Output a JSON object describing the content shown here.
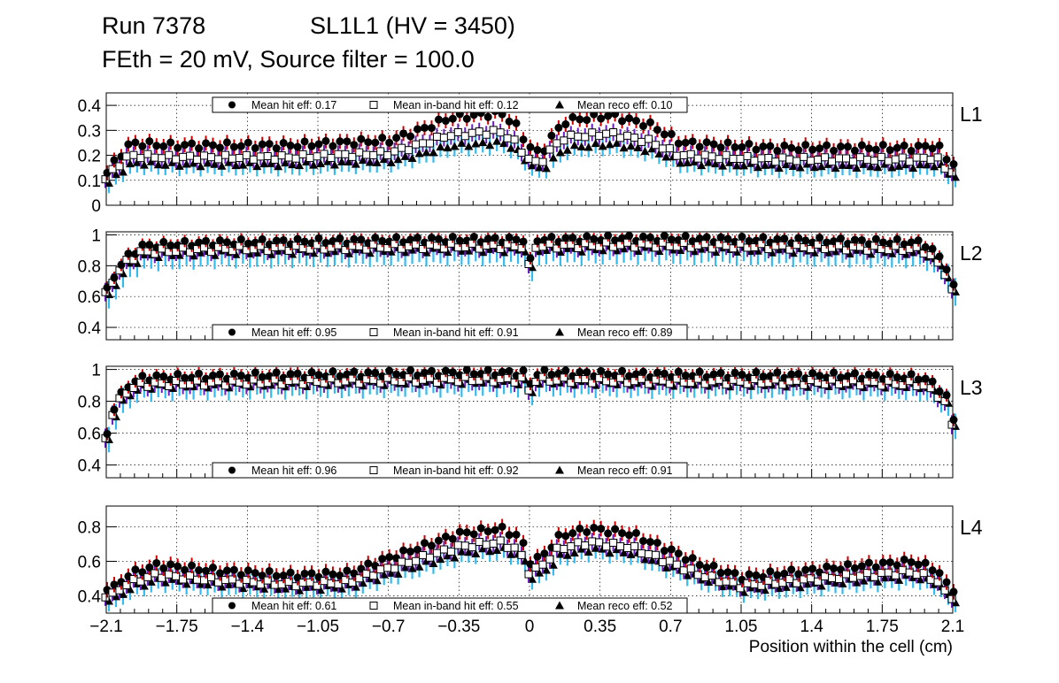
{
  "header": {
    "run": "Run 7378",
    "chamber": "SL1L1 (HV = 3450)",
    "settings": "FEth = 20 mV, Source filter = 100.0"
  },
  "colors": {
    "hit": "#000000",
    "hit_error": "#cc0000",
    "inband_error": "#6a1fc0",
    "reco_error": "#33bbee",
    "grid": "#000000"
  },
  "chart_data": {
    "type": "scatter",
    "xlabel": "Position within the cell (cm)",
    "xlim": [
      -2.1,
      2.1
    ],
    "xticks": [
      "−2.1",
      "−1.75",
      "−1.4",
      "−1.05",
      "−0.7",
      "−0.35",
      "0",
      "0.35",
      "0.7",
      "1.05",
      "1.4",
      "1.75",
      "2.1"
    ],
    "xtick_values": [
      -2.1,
      -1.75,
      -1.4,
      -1.05,
      -0.7,
      -0.35,
      0,
      0.35,
      0.7,
      1.05,
      1.4,
      1.75,
      2.1
    ],
    "legend_labels": {
      "hit": "Mean hit  eff: ",
      "inband": "Mean in-band hit eff: ",
      "reco": "Mean reco eff: "
    },
    "panels": [
      {
        "name": "L1",
        "ylim": [
          0,
          0.45
        ],
        "yticks": [
          "0",
          "0.1",
          "0.2",
          "0.3",
          "0.4"
        ],
        "ytick_values": [
          0,
          0.1,
          0.2,
          0.3,
          0.4
        ],
        "legend_position": "top",
        "mean_hit": "0.17",
        "mean_inband": "0.12",
        "mean_reco": "0.10",
        "hit_profile": [
          [
            -2.1,
            0.13
          ],
          [
            -2.05,
            0.19
          ],
          [
            -1.98,
            0.25
          ],
          [
            -1.8,
            0.24
          ],
          [
            -1.2,
            0.24
          ],
          [
            -0.7,
            0.26
          ],
          [
            -0.55,
            0.3
          ],
          [
            -0.4,
            0.35
          ],
          [
            -0.15,
            0.37
          ],
          [
            -0.08,
            0.33
          ],
          [
            -0.02,
            0.25
          ],
          [
            0.05,
            0.2
          ],
          [
            0.1,
            0.27
          ],
          [
            0.18,
            0.34
          ],
          [
            0.4,
            0.36
          ],
          [
            0.6,
            0.32
          ],
          [
            0.75,
            0.25
          ],
          [
            1.2,
            0.23
          ],
          [
            1.9,
            0.23
          ],
          [
            2.02,
            0.24
          ],
          [
            2.08,
            0.17
          ]
        ],
        "inband_ratio": 0.8,
        "reco_ratio": 0.68,
        "hit_err": 0.03,
        "inband_err": 0.035,
        "reco_err": 0.04
      },
      {
        "name": "L2",
        "ylim": [
          0.32,
          1.02
        ],
        "yticks": [
          "0.4",
          "0.6",
          "0.8",
          "1"
        ],
        "ytick_values": [
          0.4,
          0.6,
          0.8,
          1.0
        ],
        "legend_position": "bottom",
        "mean_hit": "0.95",
        "mean_inband": "0.91",
        "mean_reco": "0.89",
        "hit_profile": [
          [
            -2.1,
            0.64
          ],
          [
            -2.06,
            0.75
          ],
          [
            -2.0,
            0.86
          ],
          [
            -1.92,
            0.93
          ],
          [
            -1.6,
            0.95
          ],
          [
            -0.5,
            0.97
          ],
          [
            -0.03,
            0.97
          ],
          [
            0.0,
            0.83
          ],
          [
            0.03,
            0.97
          ],
          [
            0.5,
            0.98
          ],
          [
            1.6,
            0.96
          ],
          [
            1.95,
            0.95
          ],
          [
            2.02,
            0.87
          ],
          [
            2.06,
            0.81
          ],
          [
            2.1,
            0.66
          ]
        ],
        "inband_ratio": 0.955,
        "reco_ratio": 0.93,
        "hit_err": 0.04,
        "inband_err": 0.06,
        "reco_err": 0.09
      },
      {
        "name": "L3",
        "ylim": [
          0.32,
          1.02
        ],
        "yticks": [
          "0.4",
          "0.6",
          "0.8",
          "1"
        ],
        "ytick_values": [
          0.4,
          0.6,
          0.8,
          1.0
        ],
        "legend_position": "bottom",
        "mean_hit": "0.96",
        "mean_inband": "0.92",
        "mean_reco": "0.91",
        "hit_profile": [
          [
            -2.1,
            0.6
          ],
          [
            -2.06,
            0.78
          ],
          [
            -2.0,
            0.9
          ],
          [
            -1.92,
            0.95
          ],
          [
            -1.5,
            0.96
          ],
          [
            -0.4,
            0.98
          ],
          [
            -0.03,
            0.98
          ],
          [
            0.0,
            0.91
          ],
          [
            0.03,
            0.98
          ],
          [
            0.6,
            0.97
          ],
          [
            1.7,
            0.96
          ],
          [
            1.95,
            0.95
          ],
          [
            2.03,
            0.88
          ],
          [
            2.07,
            0.82
          ],
          [
            2.1,
            0.68
          ]
        ],
        "inband_ratio": 0.955,
        "reco_ratio": 0.94,
        "hit_err": 0.04,
        "inband_err": 0.06,
        "reco_err": 0.08
      },
      {
        "name": "L4",
        "ylim": [
          0.3,
          0.92
        ],
        "yticks": [
          "0.4",
          "0.6",
          "0.8"
        ],
        "ytick_values": [
          0.4,
          0.6,
          0.8
        ],
        "legend_position": "bottom",
        "mean_hit": "0.61",
        "mean_inband": "0.55",
        "mean_reco": "0.52",
        "hit_profile": [
          [
            -2.06,
            0.45
          ],
          [
            -2.0,
            0.52
          ],
          [
            -1.85,
            0.58
          ],
          [
            -1.6,
            0.55
          ],
          [
            -1.2,
            0.52
          ],
          [
            -0.9,
            0.53
          ],
          [
            -0.75,
            0.6
          ],
          [
            -0.55,
            0.68
          ],
          [
            -0.35,
            0.76
          ],
          [
            -0.15,
            0.79
          ],
          [
            -0.05,
            0.74
          ],
          [
            0.0,
            0.6
          ],
          [
            0.05,
            0.62
          ],
          [
            0.15,
            0.75
          ],
          [
            0.3,
            0.79
          ],
          [
            0.5,
            0.76
          ],
          [
            0.7,
            0.66
          ],
          [
            0.85,
            0.58
          ],
          [
            1.05,
            0.51
          ],
          [
            1.5,
            0.56
          ],
          [
            1.9,
            0.6
          ],
          [
            2.02,
            0.55
          ],
          [
            2.08,
            0.44
          ]
        ],
        "inband_ratio": 0.9,
        "reco_ratio": 0.85,
        "hit_err": 0.045,
        "inband_err": 0.05,
        "reco_err": 0.06
      }
    ]
  }
}
